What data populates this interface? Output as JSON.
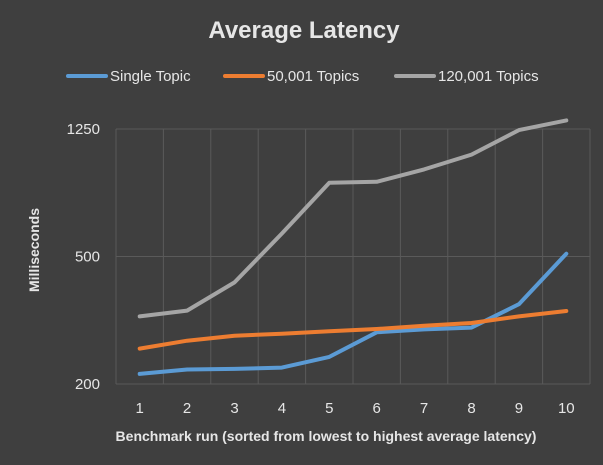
{
  "chart_data": {
    "type": "line",
    "title": "Average Latency",
    "xlabel": "Benchmark run (sorted from lowest to highest average latency)",
    "ylabel": "Milliseconds",
    "x": [
      1,
      2,
      3,
      4,
      5,
      6,
      7,
      8,
      9,
      10
    ],
    "x_tick_labels": [
      "1",
      "2",
      "3",
      "4",
      "5",
      "6",
      "7",
      "8",
      "9",
      "10"
    ],
    "y_ticks": [
      200,
      500,
      1250
    ],
    "y_tick_labels": [
      "200",
      "500",
      "1250"
    ],
    "ylim": [
      200,
      1250
    ],
    "yscale": "log",
    "grid": "vertical-and-horizontal",
    "legend_position": "top",
    "series": [
      {
        "name": "Single Topic",
        "color": "#5b9bd5",
        "values": [
          215,
          222,
          223,
          225,
          243,
          290,
          296,
          300,
          355,
          510
        ]
      },
      {
        "name": "50,001 Topics",
        "color": "#ed7d31",
        "values": [
          258,
          273,
          283,
          287,
          292,
          297,
          304,
          310,
          325,
          338
        ]
      },
      {
        "name": "120,001 Topics",
        "color": "#a5a5a5",
        "values": [
          325,
          339,
          415,
          590,
          850,
          855,
          935,
          1040,
          1240,
          1330
        ]
      }
    ]
  }
}
